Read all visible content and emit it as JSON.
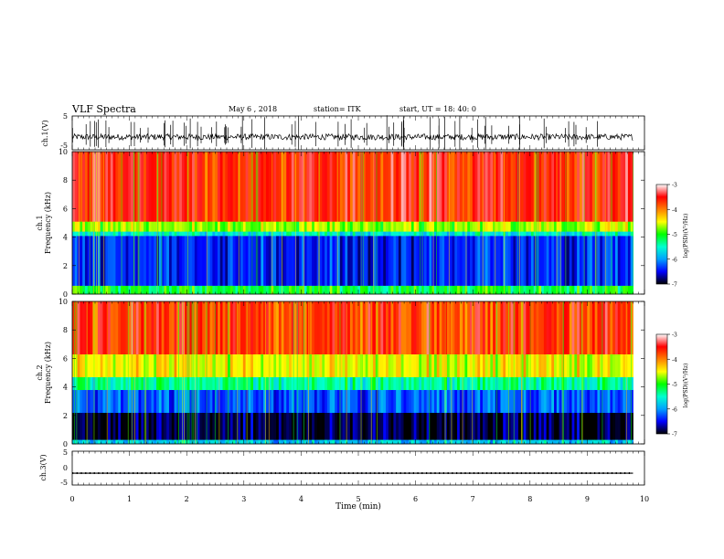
{
  "header": {
    "title": "VLF Spectra",
    "date": "May 6 , 2018",
    "station": "station= ITK",
    "start": "start, UT =  18: 40: 0"
  },
  "chart_data": [
    {
      "type": "line",
      "panel": "ch1-waveform",
      "ylabel": "ch.1(V)",
      "yticks": [
        "5",
        "-5"
      ],
      "ylim": [
        -5,
        5
      ],
      "xlim": [
        0,
        10
      ],
      "x_end": 9.8,
      "series_color": "#000000",
      "baseline": -1.2,
      "noise_amplitude": 0.9,
      "burst_count": 70,
      "burst_max_amplitude": 5
    },
    {
      "type": "heatmap",
      "panel": "ch1-spectrogram",
      "ylabel_line1": "ch.1",
      "ylabel_line2": "Frequency (kHz)",
      "yticks": [
        "0",
        "2",
        "4",
        "6",
        "8",
        "10"
      ],
      "ylim": [
        0,
        10
      ],
      "xlim": [
        0,
        10
      ],
      "x_end": 9.8,
      "levels": [
        {
          "from_khz": 0,
          "to_khz": 0.6,
          "log_psd": -5.1
        },
        {
          "from_khz": 0.6,
          "to_khz": 4.1,
          "log_psd": -6.4
        },
        {
          "from_khz": 4.1,
          "to_khz": 4.4,
          "log_psd": -5.6
        },
        {
          "from_khz": 4.4,
          "to_khz": 5.1,
          "log_psd": -4.7
        },
        {
          "from_khz": 5.1,
          "to_khz": 10,
          "log_psd": -3.6
        }
      ]
    },
    {
      "type": "heatmap",
      "panel": "ch2-spectrogram",
      "ylabel_line1": "ch.2",
      "ylabel_line2": "Frequency (kHz)",
      "yticks": [
        "0",
        "2",
        "4",
        "6",
        "8",
        "10"
      ],
      "ylim": [
        0,
        10
      ],
      "xlim": [
        0,
        10
      ],
      "x_end": 9.8,
      "levels": [
        {
          "from_khz": 0,
          "to_khz": 0.3,
          "log_psd": -5.8
        },
        {
          "from_khz": 0.3,
          "to_khz": 2.2,
          "log_psd": -6.9
        },
        {
          "from_khz": 2.2,
          "to_khz": 3.8,
          "log_psd": -6.2
        },
        {
          "from_khz": 3.8,
          "to_khz": 4.7,
          "log_psd": -5.4
        },
        {
          "from_khz": 4.7,
          "to_khz": 6.3,
          "log_psd": -4.5
        },
        {
          "from_khz": 6.3,
          "to_khz": 10,
          "log_psd": -3.7
        }
      ]
    },
    {
      "type": "line",
      "panel": "ch3-waveform",
      "ylabel": "ch.3(V)",
      "yticks": [
        "5",
        "0",
        "-5"
      ],
      "ylim": [
        -5,
        5
      ],
      "xlim": [
        0,
        10
      ],
      "x_end": 9.8,
      "series_color": "#000000",
      "baseline": -1.5,
      "xlabel": "Time (min)",
      "xticks": [
        "0",
        "1",
        "2",
        "3",
        "4",
        "5",
        "6",
        "7",
        "8",
        "9",
        "10"
      ]
    }
  ],
  "colorbar": {
    "label": "log(PSD)(V²/Hz)",
    "range": [
      -7,
      -3
    ],
    "ticks": [
      "-3",
      "-4",
      "-5",
      "-6",
      "-7"
    ],
    "colors": [
      "#000000",
      "#0000ff",
      "#00a0ff",
      "#00ffd0",
      "#00ff00",
      "#ffff00",
      "#ff8000",
      "#ff0000",
      "#ffffff"
    ]
  }
}
